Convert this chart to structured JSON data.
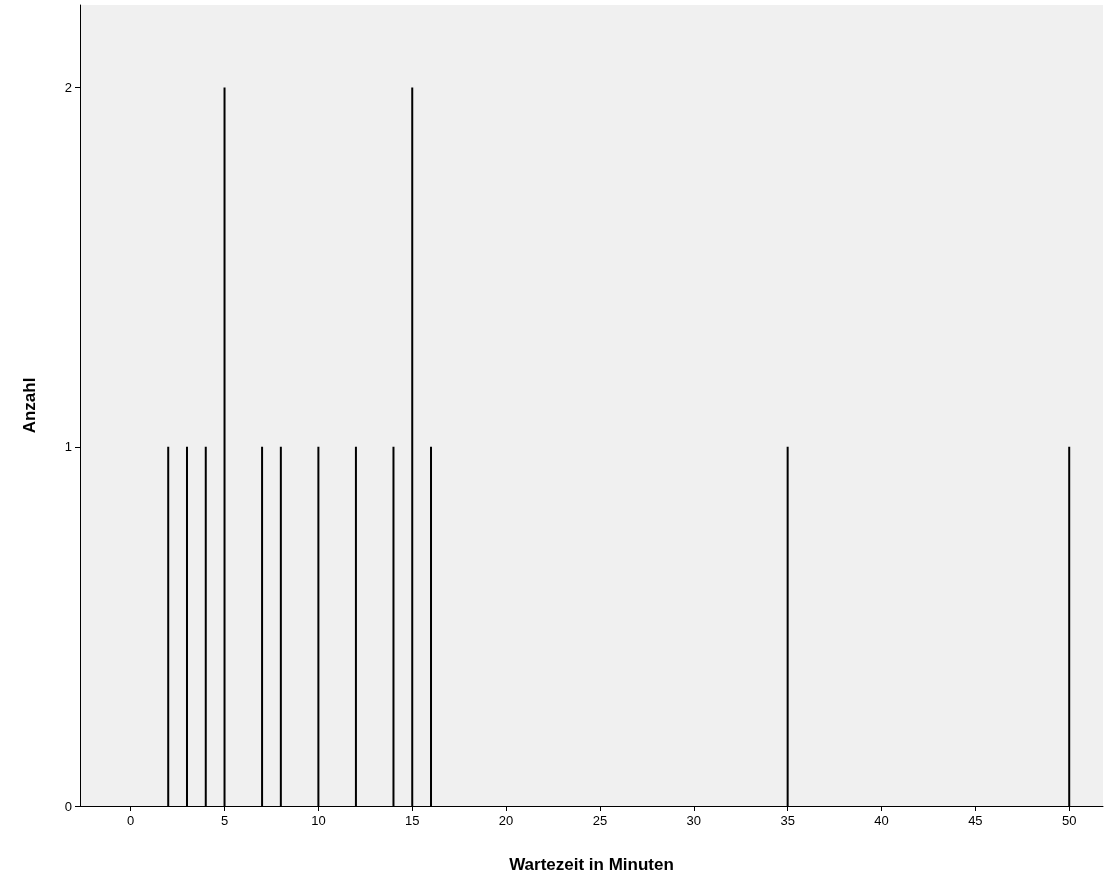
{
  "chart_data": {
    "type": "bar",
    "xlabel": "Wartezeit in Minuten",
    "ylabel": "Anzahl",
    "x": [
      2,
      3,
      4,
      5,
      7,
      8,
      10,
      12,
      14,
      15,
      16,
      35,
      50
    ],
    "values": [
      1,
      1,
      1,
      2,
      1,
      1,
      1,
      1,
      1,
      2,
      1,
      1,
      1
    ],
    "color": "#000000",
    "xlim": [
      -2.7,
      51.8
    ],
    "xticks": [
      0,
      5,
      10,
      15,
      20,
      25,
      30,
      35,
      40,
      45,
      50
    ],
    "ylim": [
      0,
      2.23
    ],
    "yticks": [
      0,
      1,
      2
    ],
    "grid": false
  }
}
